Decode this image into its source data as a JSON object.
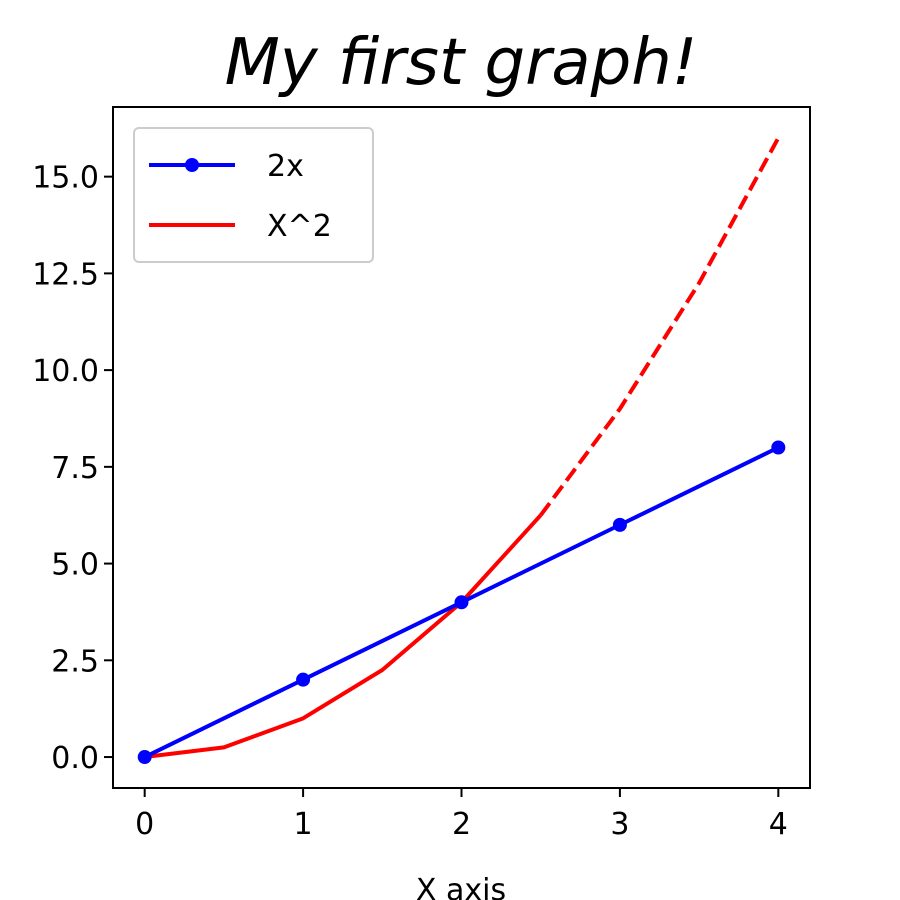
{
  "chart_data": {
    "type": "line",
    "title": "My first graph!",
    "xlabel": "X axis",
    "ylabel": "",
    "xlim": [
      -0.2,
      4.2
    ],
    "ylim": [
      -0.8,
      16.8
    ],
    "x_ticks": [
      0,
      1,
      2,
      3,
      4
    ],
    "x_tick_labels": [
      "0",
      "1",
      "2",
      "3",
      "4"
    ],
    "y_ticks": [
      0,
      2.5,
      5,
      7.5,
      10,
      12.5,
      15
    ],
    "y_tick_labels": [
      "0.0",
      "2.5",
      "5.0",
      "7.5",
      "10.0",
      "12.5",
      "15.0"
    ],
    "grid": false,
    "legend_position": "top-left",
    "series": [
      {
        "name": "2x",
        "color": "#0000ff",
        "marker": "circle",
        "x": [
          0,
          1,
          2,
          3,
          4
        ],
        "y": [
          0,
          2,
          4,
          6,
          8
        ]
      },
      {
        "name": "X^2",
        "color": "#ff0000",
        "marker": "none",
        "solid": {
          "x": [
            0,
            0.5,
            1,
            1.5,
            2,
            2.5
          ],
          "y": [
            0,
            0.25,
            1,
            2.25,
            4,
            6.25
          ]
        },
        "dashed": {
          "x": [
            2.5,
            3,
            3.5,
            4
          ],
          "y": [
            6.25,
            9,
            12.25,
            16
          ]
        }
      }
    ]
  }
}
